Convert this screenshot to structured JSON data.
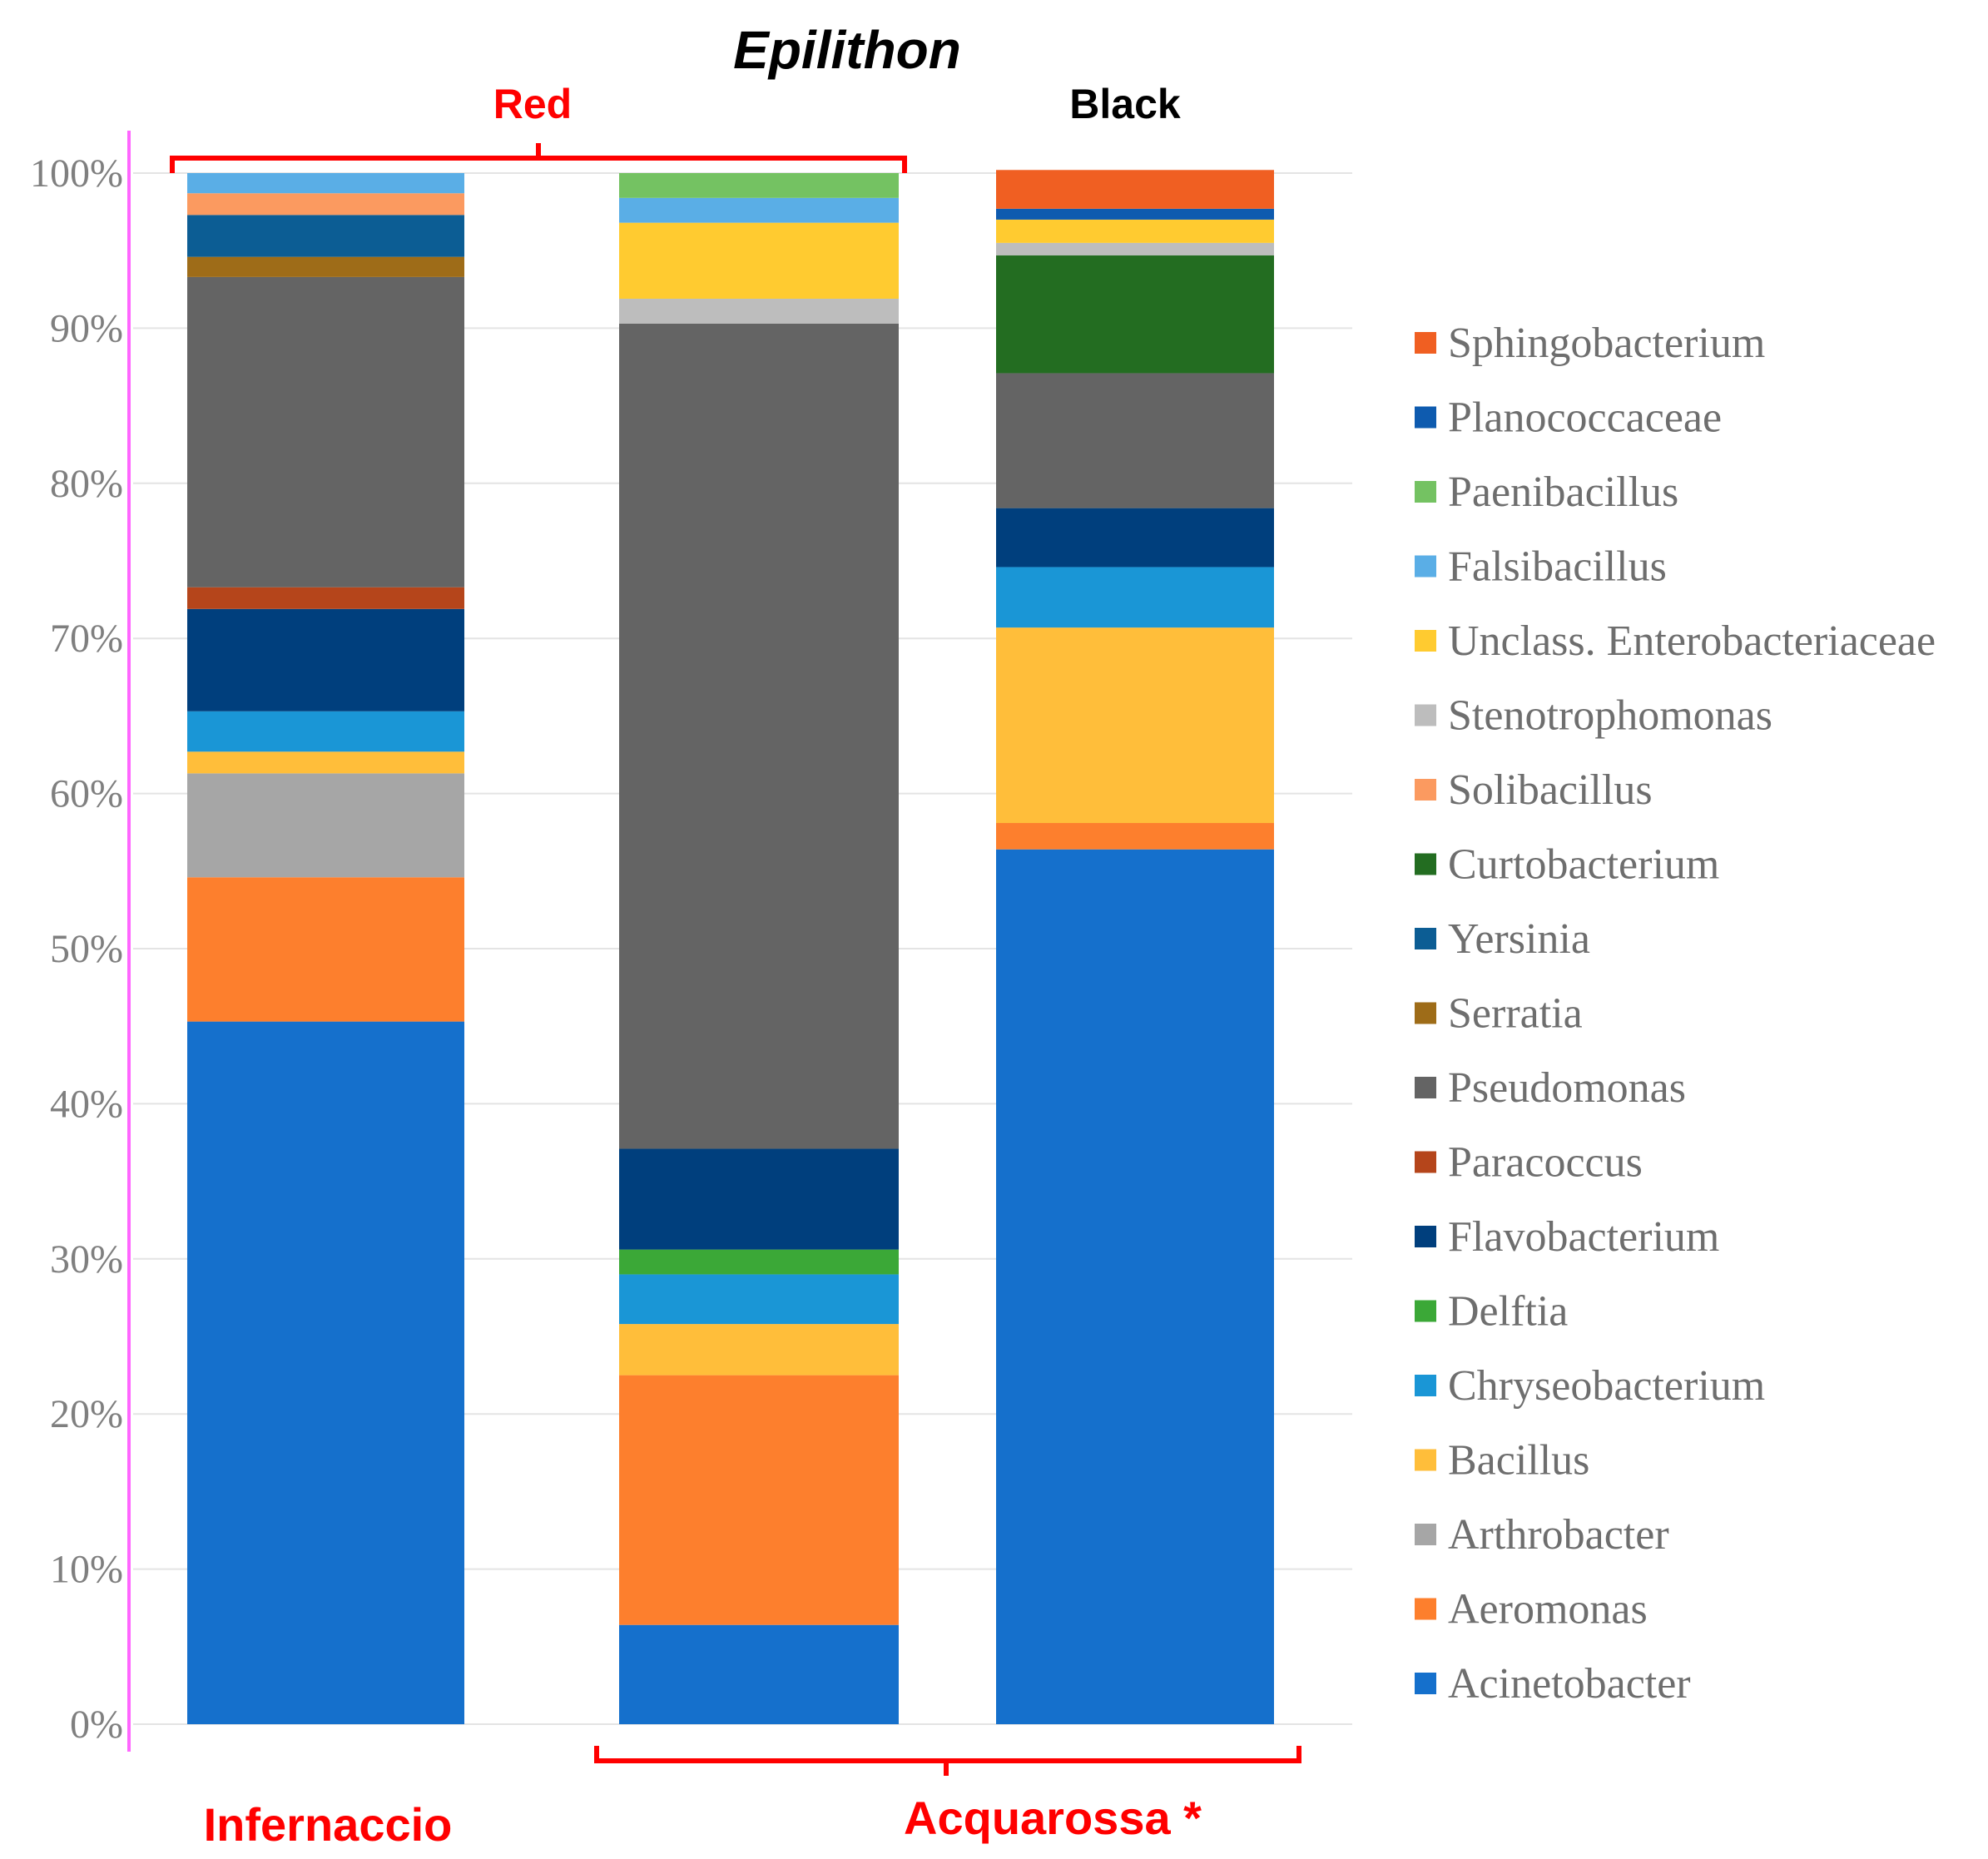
{
  "chart_data": {
    "type": "bar",
    "stacked": true,
    "title": "Epilithon",
    "ylim": [
      0,
      100
    ],
    "y_ticks": [
      "0%",
      "10%",
      "20%",
      "30%",
      "40%",
      "50%",
      "60%",
      "70%",
      "80%",
      "90%",
      "100%"
    ],
    "grid": true,
    "legend_position": "right",
    "groups": {
      "red": "Red",
      "black": "Black"
    },
    "sites": {
      "first": "Infernaccio",
      "second": "Acquarossa *"
    },
    "series": [
      {
        "name": "Acinetobacter",
        "color": "#1570CC",
        "values": [
          45.3,
          6.4,
          56.4
        ]
      },
      {
        "name": "Aeromonas",
        "color": "#FD7F2D",
        "values": [
          9.3,
          16.1,
          1.7
        ]
      },
      {
        "name": "Arthrobacter",
        "color": "#A6A6A6",
        "values": [
          6.7,
          0,
          0
        ]
      },
      {
        "name": "Bacillus",
        "color": "#FFBE3A",
        "values": [
          1.4,
          3.3,
          12.6
        ]
      },
      {
        "name": "Chryseobacterium",
        "color": "#1A96D6",
        "values": [
          2.6,
          3.2,
          3.9
        ]
      },
      {
        "name": "Delftia",
        "color": "#3BA837",
        "values": [
          0,
          1.6,
          0
        ]
      },
      {
        "name": "Flavobacterium",
        "color": "#003F7D",
        "values": [
          6.6,
          6.5,
          3.8
        ]
      },
      {
        "name": "Paracoccus",
        "color": "#B5451B",
        "values": [
          1.4,
          0,
          0
        ]
      },
      {
        "name": "Pseudomonas",
        "color": "#646464",
        "values": [
          20.0,
          53.2,
          8.7
        ]
      },
      {
        "name": "Serratia",
        "color": "#9E6C18",
        "values": [
          1.3,
          0,
          0
        ]
      },
      {
        "name": "Yersinia",
        "color": "#0C5D94",
        "values": [
          2.7,
          0,
          0
        ]
      },
      {
        "name": "Curtobacterium",
        "color": "#236D21",
        "values": [
          0,
          0,
          7.6
        ]
      },
      {
        "name": "Solibacillus",
        "color": "#FB9A60",
        "values": [
          1.4,
          0,
          0
        ]
      },
      {
        "name": "Stenotrophomonas",
        "color": "#BDBDBD",
        "values": [
          0,
          1.6,
          0.8
        ]
      },
      {
        "name": "Unclass. Enterobacteriaceae",
        "color": "#FFCB30",
        "values": [
          0,
          4.9,
          1.5
        ]
      },
      {
        "name": "Falsibacillus",
        "color": "#5AAEE6",
        "values": [
          1.3,
          1.6,
          0
        ]
      },
      {
        "name": "Paenibacillus",
        "color": "#74C262",
        "values": [
          0,
          1.6,
          0
        ]
      },
      {
        "name": "Planococcaceae",
        "color": "#0E5BAF",
        "values": [
          0,
          0,
          0.7
        ]
      },
      {
        "name": "Sphingobacterium",
        "color": "#F05F22",
        "values": [
          0,
          0,
          2.5
        ]
      }
    ]
  }
}
